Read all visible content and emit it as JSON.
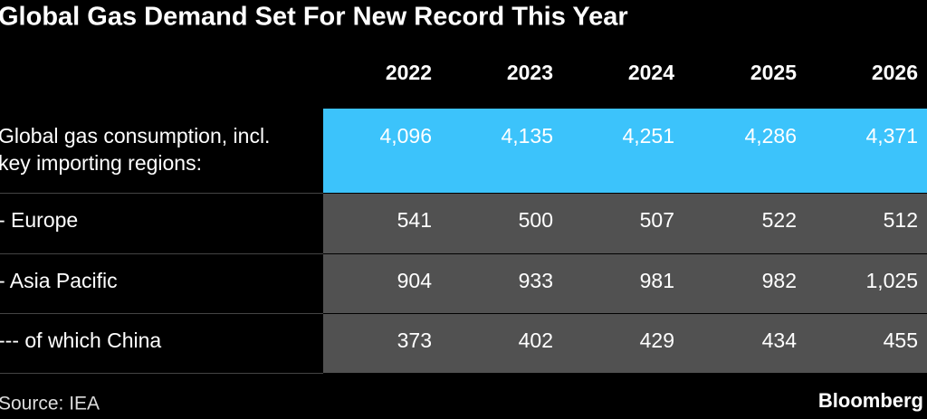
{
  "title": "Global Gas Demand Set For New Record This Year",
  "table": {
    "columns": [
      "2022",
      "2023",
      "2024",
      "2025",
      "2026"
    ],
    "rows": [
      {
        "label": [
          "Global gas consumption, incl.",
          "key importing regions:"
        ],
        "cells": [
          "4,096",
          "4,135",
          "4,251",
          "4,286",
          "4,371"
        ]
      },
      {
        "label": [
          "- Europe"
        ],
        "cells": [
          "541",
          "500",
          "507",
          "522",
          "512"
        ]
      },
      {
        "label": [
          "- Asia Pacific"
        ],
        "cells": [
          "904",
          "933",
          "981",
          "982",
          "1,025"
        ]
      },
      {
        "label": [
          "--- of which China"
        ],
        "cells": [
          "373",
          "402",
          "429",
          "434",
          "455"
        ]
      }
    ]
  },
  "source": "Source: IEA",
  "brand": "Bloomberg"
}
